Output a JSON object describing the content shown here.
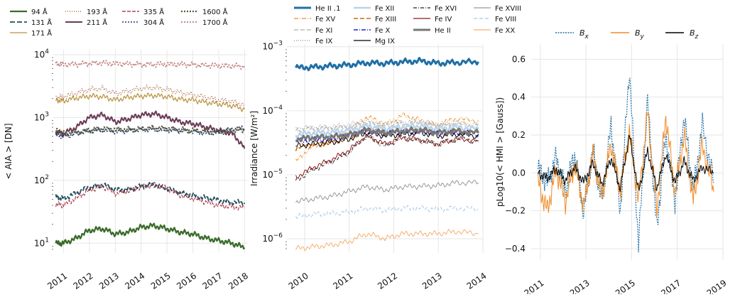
{
  "chart_data": [
    {
      "type": "line",
      "title": "",
      "xlabel": "",
      "ylabel": "< AIA > [DN]",
      "yscale": "log",
      "ylim": [
        7,
        12000
      ],
      "xlim": [
        2010.6,
        2018.1
      ],
      "xticks": [
        "2011",
        "2012",
        "2013",
        "2014",
        "2015",
        "2016",
        "2017",
        "2018"
      ],
      "yticks": [
        {
          "value": 10,
          "base": "10",
          "exp": "1"
        },
        {
          "value": 100,
          "base": "10",
          "exp": "2"
        },
        {
          "value": 1000,
          "base": "10",
          "exp": "3"
        },
        {
          "value": 10000,
          "base": "10",
          "exp": "4"
        }
      ],
      "x": [
        2010.7,
        2011.0,
        2011.5,
        2012.0,
        2012.5,
        2013.0,
        2013.5,
        2014.0,
        2014.5,
        2015.0,
        2015.5,
        2016.0,
        2016.5,
        2017.0,
        2017.5,
        2018.0
      ],
      "series": [
        {
          "name": "94 Å",
          "color": "#3a6b2a",
          "dash": "",
          "width": 2.2,
          "values": [
            10,
            10,
            12,
            16,
            17,
            14,
            15,
            18,
            19,
            17,
            15,
            14,
            12,
            11,
            10,
            8.5
          ]
        },
        {
          "name": "131 Å",
          "color": "#1f4e5c",
          "dash": "7,3",
          "width": 1.8,
          "values": [
            55,
            52,
            62,
            78,
            85,
            70,
            72,
            80,
            85,
            75,
            62,
            58,
            52,
            48,
            45,
            44
          ]
        },
        {
          "name": "171 Å",
          "color": "#b8923a",
          "dash": "",
          "width": 1.2,
          "values": [
            1900,
            1850,
            2050,
            2200,
            2150,
            1900,
            2100,
            2200,
            2250,
            2150,
            1950,
            1900,
            1750,
            1650,
            1550,
            1350
          ]
        },
        {
          "name": "193 Å",
          "color": "#a0522d",
          "dash": "1,2",
          "width": 1.2,
          "values": [
            2100,
            2150,
            2450,
            2800,
            2900,
            2400,
            2650,
            2900,
            3000,
            2800,
            2500,
            2300,
            2100,
            1900,
            1800,
            1600
          ]
        },
        {
          "name": "211 Å",
          "color": "#6b3a55",
          "dash": "",
          "width": 2.0,
          "values": [
            600,
            550,
            700,
            1000,
            1100,
            850,
            950,
            1100,
            1150,
            1000,
            850,
            800,
            700,
            620,
            560,
            320
          ]
        },
        {
          "name": "335 Å",
          "color": "#a02030",
          "dash": "5,2",
          "width": 1.0,
          "values": [
            42,
            40,
            52,
            70,
            80,
            62,
            68,
            78,
            85,
            75,
            58,
            52,
            45,
            40,
            38,
            36
          ]
        },
        {
          "name": "304 Å",
          "color": "#1f3a7a",
          "dash": "2,2",
          "width": 1.6,
          "values": [
            540,
            500,
            560,
            620,
            640,
            600,
            620,
            640,
            650,
            640,
            620,
            600,
            570,
            580,
            650,
            680
          ]
        },
        {
          "name": "1600 Å",
          "color": "#5a5a3a",
          "dash": "2,2",
          "width": 2.2,
          "values": [
            620,
            560,
            580,
            620,
            660,
            640,
            640,
            660,
            680,
            660,
            640,
            620,
            600,
            600,
            620,
            640
          ]
        },
        {
          "name": "1700 Å",
          "color": "#c48a8a",
          "dash": "2,2",
          "width": 2.0,
          "values": [
            7200,
            7000,
            7100,
            7300,
            7400,
            7200,
            7100,
            7000,
            7000,
            7050,
            7000,
            6900,
            6800,
            6700,
            6600,
            6500
          ]
        }
      ],
      "legend_position": "top"
    },
    {
      "type": "line",
      "title": "",
      "xlabel": "",
      "ylabel": "Irradiance [W/m²]",
      "yscale": "log",
      "ylim": [
        6e-07,
        0.0011
      ],
      "xlim": [
        2009.6,
        2014.0
      ],
      "xticks": [
        "2010",
        "2011",
        "2012",
        "2013",
        "2014"
      ],
      "yticks": [
        {
          "value": 1e-06,
          "base": "10",
          "exp": "−6"
        },
        {
          "value": 1e-05,
          "base": "10",
          "exp": "−5"
        },
        {
          "value": 0.0001,
          "base": "10",
          "exp": "−4"
        },
        {
          "value": 0.001,
          "base": "10",
          "exp": "−3"
        }
      ],
      "x": [
        2009.8,
        2010.2,
        2010.6,
        2011.0,
        2011.4,
        2011.8,
        2012.2,
        2012.6,
        2013.0,
        2013.4,
        2013.9
      ],
      "series": [
        {
          "name": "He II .1",
          "color": "#1f6fa6",
          "dash": "",
          "width": 3.0,
          "values": [
            0.00047,
            0.00048,
            0.0005,
            0.00052,
            0.00056,
            0.00055,
            0.00058,
            0.0006,
            0.00055,
            0.00057,
            0.00058
          ]
        },
        {
          "name": "Fe XV",
          "color": "#f08a24",
          "dash": "6,2,1,2",
          "width": 1.0,
          "values": [
            1.6e-05,
            2.8e-05,
            3.3e-05,
            4.5e-05,
            8e-05,
            6e-05,
            8.5e-05,
            7e-05,
            6e-05,
            7.5e-05,
            7e-05
          ]
        },
        {
          "name": "Fe XI",
          "color": "#cccccc",
          "dash": "6,3",
          "width": 2.0,
          "values": [
            5e-05,
            5.2e-05,
            5.3e-05,
            5.6e-05,
            6.3e-05,
            5.8e-05,
            6.2e-05,
            6.5e-05,
            5.8e-05,
            6.2e-05,
            5.8e-05
          ]
        },
        {
          "name": "Fe IX",
          "color": "#888888",
          "dash": "1,2",
          "width": 1.0,
          "values": [
            5.2e-05,
            5.5e-05,
            5.6e-05,
            6e-05,
            6.8e-05,
            6.2e-05,
            6.6e-05,
            6.8e-05,
            6e-05,
            6.4e-05,
            6e-05
          ]
        },
        {
          "name": "Fe XII",
          "color": "#b8d4ea",
          "dash": "",
          "width": 2.5,
          "values": [
            4.2e-05,
            4.5e-05,
            4.6e-05,
            5e-05,
            5.8e-05,
            5.2e-05,
            5.6e-05,
            5.8e-05,
            5.2e-05,
            5.5e-05,
            5.2e-05
          ]
        },
        {
          "name": "Fe XIII",
          "color": "#cc6a1a",
          "dash": "6,3",
          "width": 1.6,
          "values": [
            2.6e-05,
            3e-05,
            3.2e-05,
            3.8e-05,
            5e-05,
            4.4e-05,
            4.8e-05,
            5e-05,
            4.4e-05,
            4.8e-05,
            4.5e-05
          ]
        },
        {
          "name": "Fe X",
          "color": "#2222cc",
          "dash": "6,2,1,2",
          "width": 1.6,
          "values": [
            3.3e-05,
            3.5e-05,
            3.6e-05,
            4e-05,
            4.8e-05,
            4.3e-05,
            4.6e-05,
            4.8e-05,
            4.3e-05,
            4.6e-05,
            4.3e-05
          ]
        },
        {
          "name": "Mg IX",
          "color": "#000000",
          "dash": "",
          "width": 1.0,
          "values": [
            2.8e-05,
            3e-05,
            3.2e-05,
            3.6e-05,
            4.5e-05,
            4e-05,
            4.3e-05,
            4.5e-05,
            4e-05,
            4.3e-05,
            4e-05
          ]
        },
        {
          "name": "Fe XVI",
          "color": "#222222",
          "dash": "5,2,1,2",
          "width": 1.0,
          "values": [
            8e-06,
            1.2e-05,
            1.6e-05,
            2.2e-05,
            4e-05,
            2.8e-05,
            3.8e-05,
            3.4e-05,
            3e-05,
            3.6e-05,
            3.4e-05
          ]
        },
        {
          "name": "Fe IV",
          "color": "#8b1a1a",
          "dash": "",
          "width": 1.0,
          "values": [
            9e-06,
            1.3e-05,
            1.7e-05,
            2.4e-05,
            4e-05,
            3e-05,
            3.8e-05,
            3.5e-05,
            3e-05,
            3.6e-05,
            3.4e-05
          ]
        },
        {
          "name": "He II",
          "color": "#777777",
          "dash": "",
          "width": 3.0,
          "values": [
            3.6e-05,
            3.8e-05,
            3.9e-05,
            4.2e-05,
            5e-05,
            4.5e-05,
            4.8e-05,
            5e-05,
            4.5e-05,
            4.8e-05,
            4.5e-05
          ]
        },
        {
          "name": "Fe XVIII",
          "color": "#999999",
          "dash": "",
          "width": 1.0,
          "values": [
            3.8e-06,
            4.2e-06,
            4.6e-06,
            5.5e-06,
            6.5e-06,
            5.8e-06,
            6.5e-06,
            6.6e-06,
            6.8e-06,
            7.5e-06,
            7.5e-06
          ]
        },
        {
          "name": "Fe VIII",
          "color": "#a8c8e8",
          "dash": "5,3",
          "width": 1.0,
          "values": [
            2.2e-06,
            2.4e-06,
            2.5e-06,
            2.6e-06,
            3e-06,
            2.8e-06,
            3e-06,
            3e-06,
            2.9e-06,
            3e-06,
            2.9e-06
          ]
        },
        {
          "name": "Fe XX",
          "color": "#f5b070",
          "dash": "",
          "width": 1.0,
          "values": [
            7e-07,
            7.5e-07,
            8e-07,
            9e-07,
            1.2e-06,
            1e-06,
            1.2e-06,
            1.2e-06,
            1.2e-06,
            1.3e-06,
            1.2e-06
          ]
        }
      ],
      "legend_position": "top"
    },
    {
      "type": "line",
      "title": "",
      "xlabel": "",
      "ylabel": "pLog10(< HMI > [Gauss])",
      "yscale": "linear",
      "ylim": [
        -0.46,
        0.68
      ],
      "xlim": [
        2010.6,
        2019.0
      ],
      "xticks": [
        "2011",
        "2013",
        "2015",
        "2017",
        "2019"
      ],
      "xtick_values": [
        2011,
        2013,
        2015,
        2017,
        2019
      ],
      "yticks": [
        "−0.4",
        "−0.2",
        "0.0",
        "0.2",
        "0.4",
        "0.6"
      ],
      "ytick_values": [
        -0.4,
        -0.2,
        0,
        0.2,
        0.4,
        0.6
      ],
      "x": [
        2010.9,
        2011.3,
        2011.7,
        2012.1,
        2012.5,
        2012.9,
        2013.3,
        2013.7,
        2014.1,
        2014.5,
        2014.9,
        2015.3,
        2015.7,
        2016.1,
        2016.5,
        2016.9,
        2017.3,
        2017.7,
        2018.1,
        2018.6
      ],
      "series": [
        {
          "name": "B_x",
          "label_main": "B",
          "label_sub": "x",
          "color": "#1f6fa6",
          "dash": "2,1.5",
          "width": 1.2,
          "values": [
            0.02,
            -0.05,
            0.08,
            -0.1,
            0.1,
            -0.2,
            0.12,
            -0.15,
            0.25,
            -0.2,
            0.55,
            -0.38,
            0.38,
            -0.3,
            0.2,
            -0.15,
            0.3,
            -0.1,
            0.25,
            -0.05
          ]
        },
        {
          "name": "B_y",
          "label_main": "B",
          "label_sub": "y",
          "color": "#f08a24",
          "dash": "",
          "width": 1.0,
          "values": [
            -0.05,
            -0.2,
            0.02,
            -0.15,
            0.05,
            -0.18,
            0.1,
            -0.12,
            0.15,
            -0.1,
            0.22,
            -0.15,
            0.32,
            -0.2,
            0.3,
            -0.1,
            0.2,
            -0.15,
            0.15,
            -0.1
          ]
        },
        {
          "name": "B_z",
          "label_main": "B",
          "label_sub": "z",
          "color": "#000000",
          "dash": "",
          "width": 1.0,
          "values": [
            0,
            -0.03,
            0.02,
            -0.04,
            0.03,
            -0.05,
            0.05,
            -0.06,
            0.08,
            -0.08,
            0.2,
            -0.1,
            0.12,
            -0.08,
            0.1,
            -0.05,
            0.06,
            -0.04,
            0.03,
            0
          ]
        }
      ],
      "legend_position": "top"
    }
  ]
}
